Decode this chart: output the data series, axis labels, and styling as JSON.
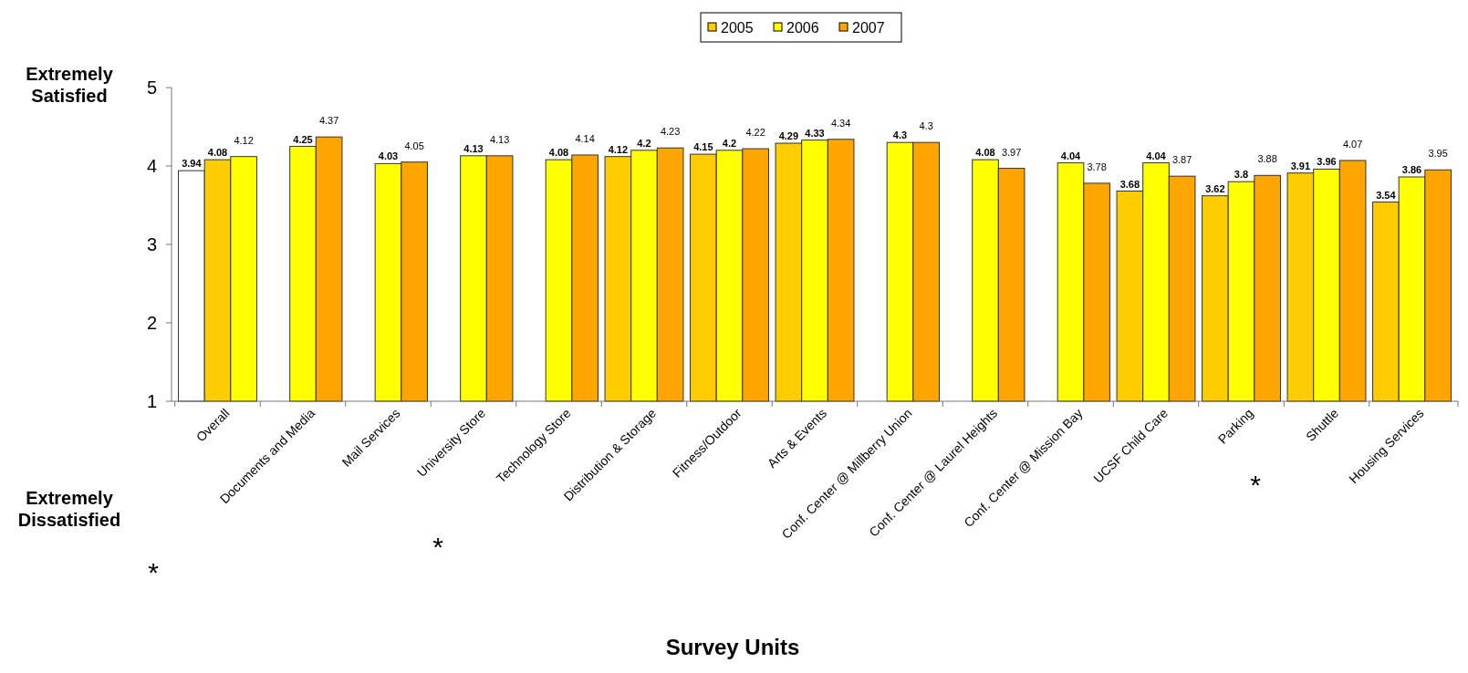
{
  "chart_data": {
    "type": "bar",
    "xlabel": "Survey Units",
    "categories": [
      "Overall",
      "Documents and Media",
      "Mail Services",
      "University Store",
      "Technology Store",
      "Distribution & Storage",
      "Fitness/Outdoor",
      "Arts & Events",
      "Conf. Center @ Millberry Union",
      "Conf. Center @ Laurel Heights",
      "Conf. Center @ Mission Bay",
      "UCSF Child Care",
      "Parking",
      "Shuttle",
      "Housing  Services"
    ],
    "series": [
      {
        "name": "2005",
        "color": "#ffcc00",
        "colors": [
          "#ffffff",
          null,
          null,
          null,
          null,
          "#ffcc00",
          "#ffcc00",
          "#ffcc00",
          null,
          null,
          null,
          "#ffcc00",
          "#ffcc00",
          "#ffcc00",
          "#ffcc00"
        ],
        "values": [
          3.94,
          null,
          null,
          null,
          null,
          4.12,
          4.15,
          4.29,
          null,
          null,
          null,
          3.68,
          3.62,
          3.91,
          3.54
        ]
      },
      {
        "name": "2006",
        "color": "#ffff00",
        "colors": [
          "#ffcc00",
          "#ffff00",
          "#ffff00",
          "#ffff00",
          "#ffff00",
          "#ffff00",
          "#ffff00",
          "#ffff00",
          "#ffff00",
          "#ffff00",
          "#ffff00",
          "#ffff00",
          "#ffff00",
          "#ffff00",
          "#ffff00"
        ],
        "values": [
          4.08,
          4.25,
          4.03,
          4.13,
          4.08,
          4.2,
          4.2,
          4.33,
          4.3,
          4.08,
          4.04,
          4.04,
          3.8,
          3.96,
          3.86
        ]
      },
      {
        "name": "2007",
        "color": "#ffa500",
        "colors": [
          "#ffff00",
          "#ffa500",
          "#ffa500",
          "#ffa500",
          "#ffa500",
          "#ffa500",
          "#ffa500",
          "#ffa500",
          "#ffa500",
          "#ffa500",
          "#ffa500",
          "#ffa500",
          "#ffa500",
          "#ffa500",
          "#ffa500"
        ],
        "values": [
          4.12,
          4.37,
          4.05,
          4.13,
          4.14,
          4.23,
          4.22,
          4.34,
          4.3,
          3.97,
          3.78,
          3.87,
          3.88,
          4.07,
          3.95
        ]
      }
    ],
    "ylim": [
      1,
      5
    ],
    "yticks": [
      1,
      2,
      3,
      4,
      5
    ],
    "data_labels": true,
    "legend": "top",
    "annotations": [
      "Extremely Satisfied",
      "Extremely Dissatisfied",
      "*",
      "*",
      "*"
    ]
  }
}
